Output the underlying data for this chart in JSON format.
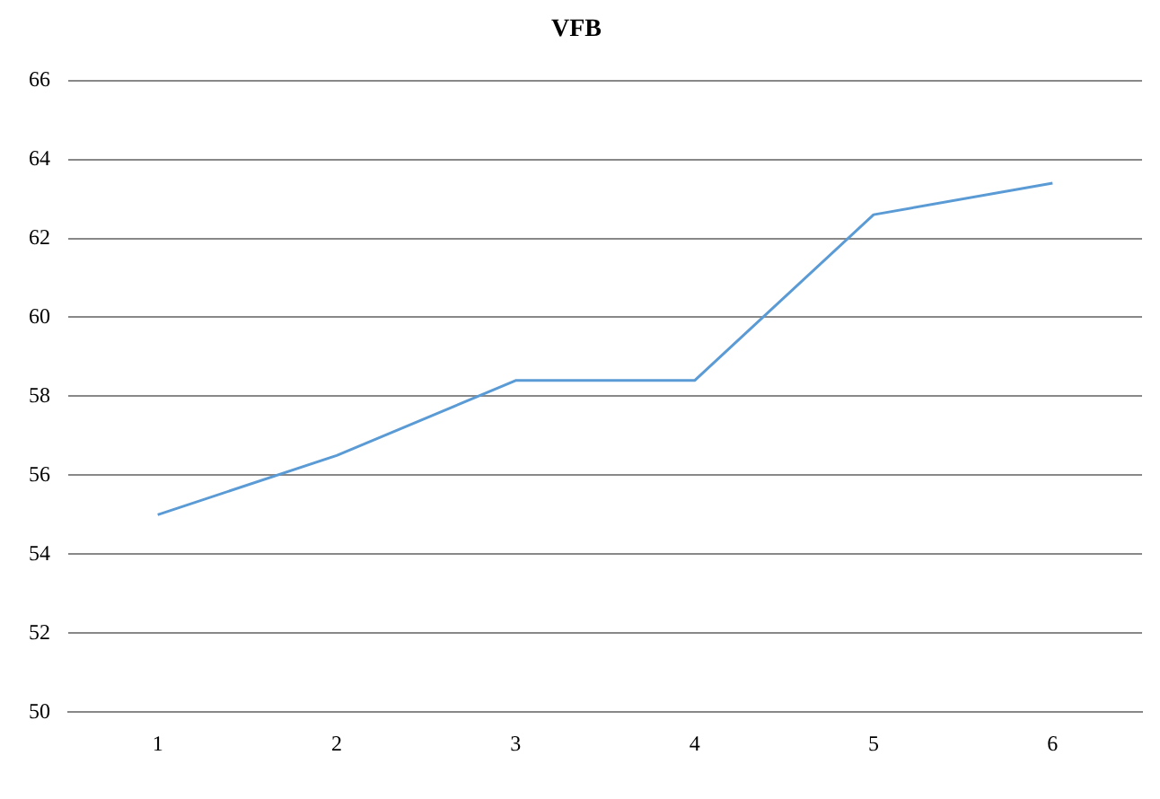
{
  "chart_data": {
    "type": "line",
    "title": "VFB",
    "categories": [
      "1",
      "2",
      "3",
      "4",
      "5",
      "6"
    ],
    "series": [
      {
        "color": "#5b9bd5",
        "values": [
          55.0,
          56.5,
          58.4,
          58.4,
          62.6,
          63.4
        ]
      }
    ],
    "ylim": [
      50,
      66
    ],
    "yticks": [
      50,
      52,
      54,
      56,
      58,
      60,
      62,
      64,
      66
    ],
    "grid": "y",
    "legend": false,
    "marker": "none"
  }
}
